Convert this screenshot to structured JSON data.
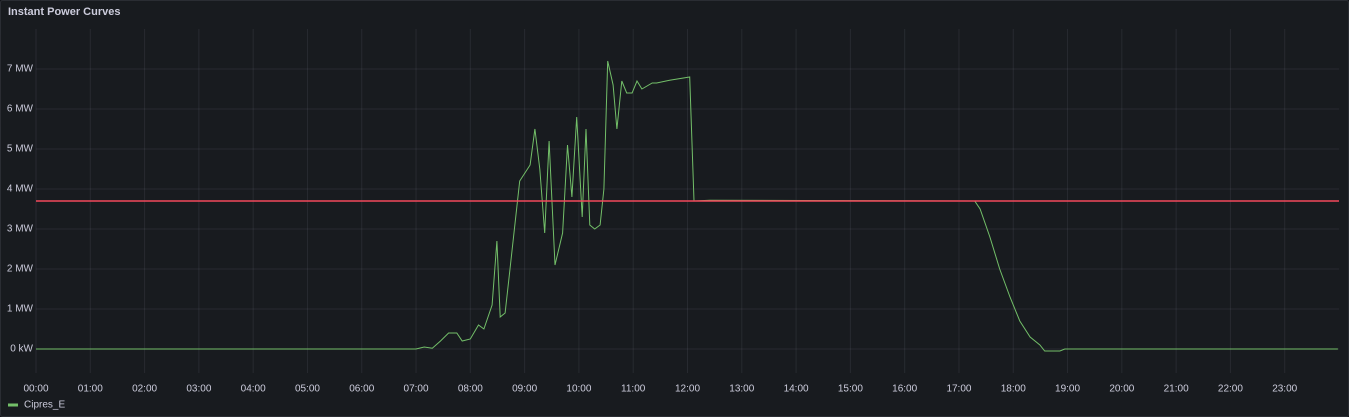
{
  "chart_data": {
    "type": "line",
    "title": "Instant Power Curves",
    "x": [
      0,
      7.0,
      7.15,
      7.3,
      7.45,
      7.6,
      7.75,
      7.85,
      8.0,
      8.15,
      8.25,
      8.4,
      8.49,
      8.55,
      8.64,
      8.73,
      8.91,
      9.1,
      9.19,
      9.28,
      9.37,
      9.45,
      9.56,
      9.7,
      9.79,
      9.87,
      9.96,
      10.06,
      10.13,
      10.2,
      10.29,
      10.39,
      10.46,
      10.53,
      10.63,
      10.7,
      10.79,
      10.88,
      10.98,
      11.07,
      11.16,
      11.35,
      11.43,
      11.67,
      12.04,
      12.12,
      12.41,
      17.29,
      17.39,
      17.57,
      17.75,
      17.94,
      18.12,
      18.31,
      18.49,
      18.58,
      18.86,
      18.95,
      23.98
    ],
    "series": [
      {
        "name": "Cipres_E",
        "color": "#73bf69",
        "values": [
          0,
          0,
          0.05,
          0.02,
          0.2,
          0.4,
          0.4,
          0.2,
          0.25,
          0.6,
          0.5,
          1.1,
          2.7,
          0.8,
          0.9,
          2.0,
          4.2,
          4.6,
          5.5,
          4.5,
          2.9,
          5.2,
          2.1,
          2.9,
          5.1,
          3.8,
          5.8,
          3.3,
          5.5,
          3.1,
          3.0,
          3.1,
          4.0,
          7.2,
          6.6,
          5.5,
          6.7,
          6.4,
          6.4,
          6.7,
          6.5,
          6.65,
          6.65,
          6.72,
          6.8,
          3.7,
          3.72,
          3.7,
          3.5,
          2.8,
          2.0,
          1.3,
          0.7,
          0.3,
          0.1,
          -0.05,
          -0.05,
          0,
          0
        ]
      }
    ],
    "threshold": {
      "value": 3.7,
      "color": "#f2495c"
    },
    "xlim": [
      0,
      24
    ],
    "xticks": [
      {
        "value": 0,
        "label": "00:00"
      },
      {
        "value": 1,
        "label": "01:00"
      },
      {
        "value": 2,
        "label": "02:00"
      },
      {
        "value": 3,
        "label": "03:00"
      },
      {
        "value": 4,
        "label": "04:00"
      },
      {
        "value": 5,
        "label": "05:00"
      },
      {
        "value": 6,
        "label": "06:00"
      },
      {
        "value": 7,
        "label": "07:00"
      },
      {
        "value": 8,
        "label": "08:00"
      },
      {
        "value": 9,
        "label": "09:00"
      },
      {
        "value": 10,
        "label": "10:00"
      },
      {
        "value": 11,
        "label": "11:00"
      },
      {
        "value": 12,
        "label": "12:00"
      },
      {
        "value": 13,
        "label": "13:00"
      },
      {
        "value": 14,
        "label": "14:00"
      },
      {
        "value": 15,
        "label": "15:00"
      },
      {
        "value": 16,
        "label": "16:00"
      },
      {
        "value": 17,
        "label": "17:00"
      },
      {
        "value": 18,
        "label": "18:00"
      },
      {
        "value": 19,
        "label": "19:00"
      },
      {
        "value": 20,
        "label": "20:00"
      },
      {
        "value": 21,
        "label": "21:00"
      },
      {
        "value": 22,
        "label": "22:00"
      },
      {
        "value": 23,
        "label": "23:00"
      }
    ],
    "ylim": [
      -0.6,
      8
    ],
    "yticks": [
      {
        "value": 0,
        "label": "0 kW"
      },
      {
        "value": 1,
        "label": "1 MW"
      },
      {
        "value": 2,
        "label": "2 MW"
      },
      {
        "value": 3,
        "label": "3 MW"
      },
      {
        "value": 4,
        "label": "4 MW"
      },
      {
        "value": 5,
        "label": "5 MW"
      },
      {
        "value": 6,
        "label": "6 MW"
      },
      {
        "value": 7,
        "label": "7 MW"
      }
    ],
    "grid": true
  }
}
